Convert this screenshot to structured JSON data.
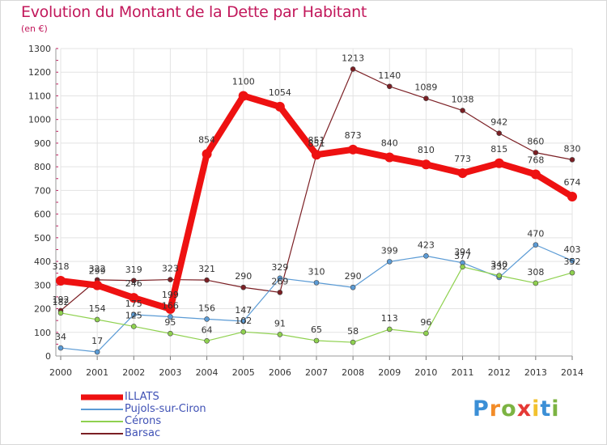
{
  "title": "Evolution du Montant de la Dette par Habitant",
  "unit": "(en €)",
  "logo": {
    "letters": [
      "P",
      "r",
      "o",
      "x",
      "i",
      "t",
      "i"
    ],
    "colors": [
      "#3b8fd6",
      "#f28c28",
      "#7cb342",
      "#e53935",
      "#f2c12e",
      "#3b8fd6",
      "#7cb342"
    ]
  },
  "chart_data": {
    "type": "line",
    "x": [
      "2000",
      "2001",
      "2002",
      "2003",
      "2004",
      "2005",
      "2006",
      "2007",
      "2008",
      "2009",
      "2010",
      "2011",
      "2012",
      "2013",
      "2014"
    ],
    "ylim": [
      0,
      1300
    ],
    "yticks": [
      0,
      100,
      200,
      300,
      400,
      500,
      600,
      700,
      800,
      900,
      1000,
      1100,
      1200,
      1300
    ],
    "grid": true,
    "legend_position": "bottom-left",
    "series": [
      {
        "name": "Barsac",
        "color": "#7b1f24",
        "values": [
          192,
          322,
          319,
          323,
          321,
          290,
          269,
          851,
          1213,
          1140,
          1089,
          1038,
          942,
          860,
          830
        ],
        "labels": [
          "192",
          "322",
          "319",
          "323",
          "321",
          "290",
          "269",
          "851",
          "1213",
          "1140",
          "1089",
          "1038",
          "942",
          "860",
          "830"
        ]
      },
      {
        "name": "Pujols-sur-Ciron",
        "color": "#5b9bd5",
        "values": [
          34,
          17,
          175,
          166,
          156,
          147,
          329,
          310,
          290,
          399,
          423,
          394,
          332,
          470,
          403
        ],
        "labels": [
          "34",
          "17",
          "175",
          "166",
          "156",
          "147",
          "329",
          "310",
          "290",
          "399",
          "423",
          "394",
          "332",
          "470",
          "403"
        ]
      },
      {
        "name": "Cérons",
        "color": "#8fd14f",
        "values": [
          182,
          154,
          125,
          95,
          64,
          102,
          91,
          65,
          58,
          113,
          96,
          377,
          340,
          308,
          352
        ],
        "labels": [
          "182",
          "154",
          "125",
          "95",
          "64",
          "102",
          "91",
          "65",
          "58",
          "113",
          "96",
          "377",
          "340",
          "308",
          "352"
        ]
      },
      {
        "name": "ILLATS",
        "color": "#ee1111",
        "values": [
          318,
          299,
          246,
          199,
          854,
          1100,
          1054,
          851,
          873,
          840,
          810,
          773,
          815,
          768,
          674
        ],
        "labels": [
          "318",
          "299",
          "246",
          "199",
          "854",
          "1100",
          "1054",
          "851",
          "873",
          "840",
          "810",
          "773",
          "815",
          "768",
          "674"
        ]
      }
    ]
  }
}
